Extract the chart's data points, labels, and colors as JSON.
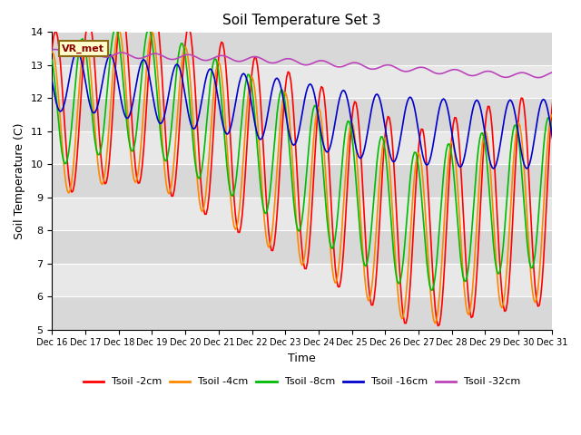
{
  "title": "Soil Temperature Set 3",
  "xlabel": "Time",
  "ylabel": "Soil Temperature (C)",
  "ylim": [
    5.0,
    14.0
  ],
  "yticks": [
    5.0,
    6.0,
    7.0,
    8.0,
    9.0,
    10.0,
    11.0,
    12.0,
    13.0,
    14.0
  ],
  "annotation_text": "VR_met",
  "annotation_bg": "#ffffcc",
  "annotation_border": "#8B6914",
  "colors": {
    "t2cm": "#ff0000",
    "t4cm": "#ff8800",
    "t8cm": "#00bb00",
    "t16cm": "#0000cc",
    "t32cm": "#bb44bb"
  },
  "legend_labels": [
    "Tsoil -2cm",
    "Tsoil -4cm",
    "Tsoil -8cm",
    "Tsoil -16cm",
    "Tsoil -32cm"
  ],
  "x_tick_labels": [
    "Dec 16",
    "Dec 17",
    "Dec 18",
    "Dec 19",
    "Dec 20",
    "Dec 21",
    "Dec 22",
    "Dec 23",
    "Dec 24",
    "Dec 25",
    "Dec 26",
    "Dec 27",
    "Dec 28",
    "Dec 29",
    "Dec 30",
    "Dec 31"
  ],
  "band_colors": [
    "#d8d8d8",
    "#e8e8e8"
  ],
  "grid_color": "#ffffff"
}
